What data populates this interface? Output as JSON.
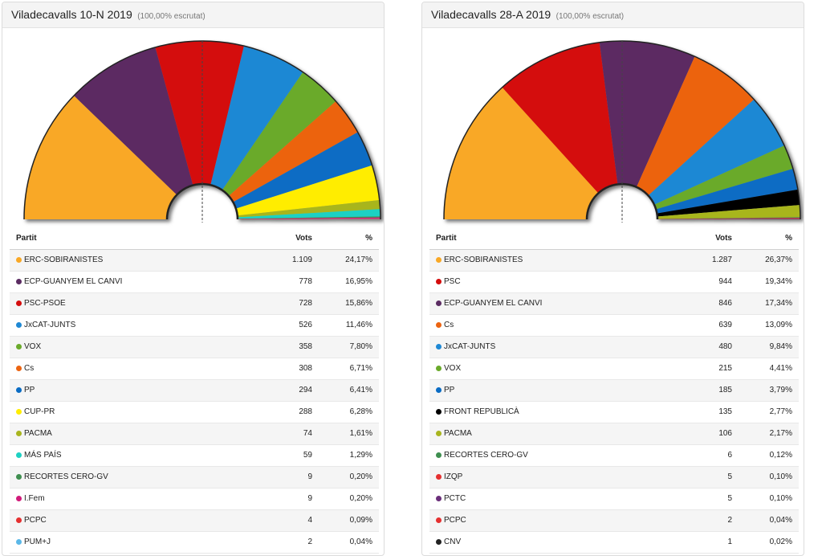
{
  "columns": {
    "party": "Partit",
    "votes": "Vots",
    "pct": "%"
  },
  "chart_data": [
    {
      "type": "table",
      "title": "Viladecavalls 10-N 2019",
      "subtitle": "(100,00% escrutat)",
      "parties": [
        {
          "name": "ERC-SOBIRANISTES",
          "votes": 1109,
          "votes_label": "1.109",
          "pct_label": "24,17%",
          "color": "#f9a825"
        },
        {
          "name": "ECP-GUANYEM EL CANVI",
          "votes": 778,
          "votes_label": "778",
          "pct_label": "16,95%",
          "color": "#5b2c62"
        },
        {
          "name": "PSC-PSOE",
          "votes": 728,
          "votes_label": "728",
          "pct_label": "15,86%",
          "color": "#d40d0d"
        },
        {
          "name": "JxCAT-JUNTS",
          "votes": 526,
          "votes_label": "526",
          "pct_label": "11,46%",
          "color": "#1e88d4"
        },
        {
          "name": "VOX",
          "votes": 358,
          "votes_label": "358",
          "pct_label": "7,80%",
          "color": "#6aaa2a"
        },
        {
          "name": "Cs",
          "votes": 308,
          "votes_label": "308",
          "pct_label": "6,71%",
          "color": "#ec6411"
        },
        {
          "name": "PP",
          "votes": 294,
          "votes_label": "294",
          "pct_label": "6,41%",
          "color": "#0a6cc4"
        },
        {
          "name": "CUP-PR",
          "votes": 288,
          "votes_label": "288",
          "pct_label": "6,28%",
          "color": "#ffed00"
        },
        {
          "name": "PACMA",
          "votes": 74,
          "votes_label": "74",
          "pct_label": "1,61%",
          "color": "#a8b51f"
        },
        {
          "name": "MÁS PAÍS",
          "votes": 59,
          "votes_label": "59",
          "pct_label": "1,29%",
          "color": "#1ed1c3"
        },
        {
          "name": "RECORTES CERO-GV",
          "votes": 9,
          "votes_label": "9",
          "pct_label": "0,20%",
          "color": "#3f8f50"
        },
        {
          "name": "I.Fem",
          "votes": 9,
          "votes_label": "9",
          "pct_label": "0,20%",
          "color": "#d11b7a"
        },
        {
          "name": "PCPC",
          "votes": 4,
          "votes_label": "4",
          "pct_label": "0,09%",
          "color": "#e53030"
        },
        {
          "name": "PUM+J",
          "votes": 2,
          "votes_label": "2",
          "pct_label": "0,04%",
          "color": "#5bb8e8"
        }
      ]
    },
    {
      "type": "table",
      "title": "Viladecavalls 28-A 2019",
      "subtitle": "(100,00% escrutat)",
      "parties": [
        {
          "name": "ERC-SOBIRANISTES",
          "votes": 1287,
          "votes_label": "1.287",
          "pct_label": "26,37%",
          "color": "#f9a825"
        },
        {
          "name": "PSC",
          "votes": 944,
          "votes_label": "944",
          "pct_label": "19,34%",
          "color": "#d40d0d"
        },
        {
          "name": "ECP-GUANYEM EL CANVI",
          "votes": 846,
          "votes_label": "846",
          "pct_label": "17,34%",
          "color": "#5b2c62"
        },
        {
          "name": "Cs",
          "votes": 639,
          "votes_label": "639",
          "pct_label": "13,09%",
          "color": "#ec6411"
        },
        {
          "name": "JxCAT-JUNTS",
          "votes": 480,
          "votes_label": "480",
          "pct_label": "9,84%",
          "color": "#1e88d4"
        },
        {
          "name": "VOX",
          "votes": 215,
          "votes_label": "215",
          "pct_label": "4,41%",
          "color": "#6aaa2a"
        },
        {
          "name": "PP",
          "votes": 185,
          "votes_label": "185",
          "pct_label": "3,79%",
          "color": "#0a6cc4"
        },
        {
          "name": "FRONT REPUBLICÀ",
          "votes": 135,
          "votes_label": "135",
          "pct_label": "2,77%",
          "color": "#000000"
        },
        {
          "name": "PACMA",
          "votes": 106,
          "votes_label": "106",
          "pct_label": "2,17%",
          "color": "#a8b51f"
        },
        {
          "name": "RECORTES CERO-GV",
          "votes": 6,
          "votes_label": "6",
          "pct_label": "0,12%",
          "color": "#3f8f50"
        },
        {
          "name": "IZQP",
          "votes": 5,
          "votes_label": "5",
          "pct_label": "0,10%",
          "color": "#e53030"
        },
        {
          "name": "PCTC",
          "votes": 5,
          "votes_label": "5",
          "pct_label": "0,10%",
          "color": "#6b2f7a"
        },
        {
          "name": "PCPC",
          "votes": 2,
          "votes_label": "2",
          "pct_label": "0,04%",
          "color": "#e53030"
        },
        {
          "name": "CNV",
          "votes": 1,
          "votes_label": "1",
          "pct_label": "0,02%",
          "color": "#222222"
        }
      ]
    }
  ]
}
